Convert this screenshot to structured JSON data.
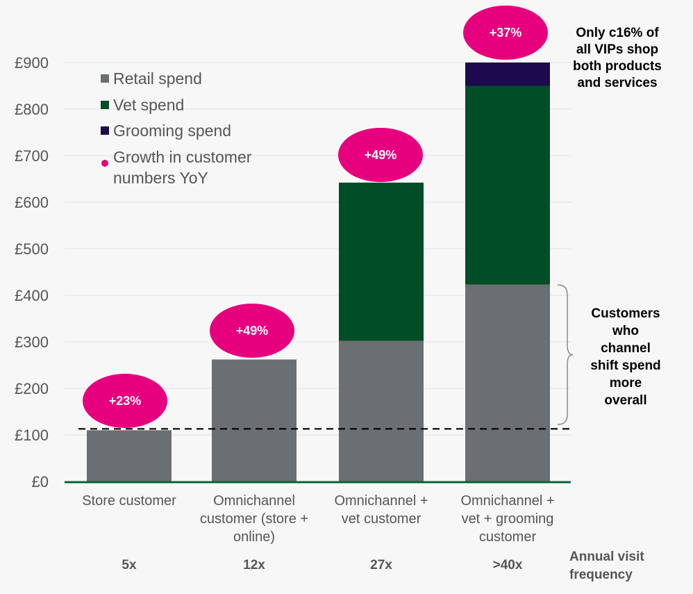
{
  "chart_data": {
    "type": "bar",
    "stacked": true,
    "categories": [
      [
        "Store customer"
      ],
      [
        "Omnichannel",
        "customer (store +",
        "online)"
      ],
      [
        "Omnichannel +",
        "vet customer"
      ],
      [
        "Omnichannel +",
        "vet + grooming",
        "customer"
      ]
    ],
    "series": [
      {
        "name": "Retail spend",
        "color": "#6b6e72",
        "values": [
          110,
          262,
          302,
          423
        ]
      },
      {
        "name": "Vet spend",
        "color": "#004d27",
        "values": [
          0,
          0,
          340,
          427
        ]
      },
      {
        "name": "Grooming spend",
        "color": "#1d0a4e",
        "values": [
          0,
          0,
          0,
          50
        ]
      }
    ],
    "growth_marker": {
      "name": "Growth in customer numbers YoY",
      "legend_lines": [
        "Growth in customer",
        "numbers YoY"
      ],
      "color": "#e6007e"
    },
    "growth": [
      "+23%",
      "+49%",
      "+49%",
      "+37%"
    ],
    "visit_frequency": [
      "5x",
      "12x",
      "27x",
      ">40x"
    ],
    "visit_frequency_label": [
      "Annual visit",
      "frequency"
    ],
    "ylim": [
      0,
      900
    ],
    "yticks": [
      0,
      100,
      200,
      300,
      400,
      500,
      600,
      700,
      800,
      900
    ],
    "ytick_prefix": "£",
    "reference_line": 113,
    "grid": true,
    "legend_position": "top-left",
    "annotations": {
      "top_right": [
        "Only c16% of",
        "all VIPs shop",
        "both products",
        "and services"
      ],
      "brace": [
        "Customers",
        "who",
        "channel",
        "shift spend",
        "more",
        "overall"
      ]
    },
    "axis_color": "#006633"
  }
}
